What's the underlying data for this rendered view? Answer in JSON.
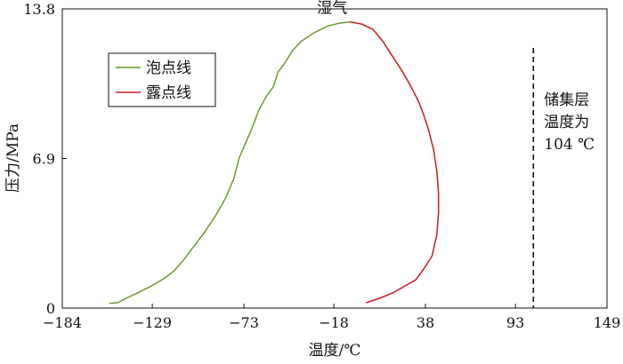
{
  "chart_data": {
    "type": "line",
    "title": "",
    "xlabel": "温度/℃",
    "ylabel": "压力/MPa",
    "xlim": [
      -184,
      149
    ],
    "ylim": [
      0,
      13.8
    ],
    "xticks": [
      -184,
      -129,
      -73,
      -18,
      38,
      93,
      149
    ],
    "yticks": [
      0,
      6.9,
      13.8
    ],
    "grid": false,
    "legend_position": "top-left",
    "series": [
      {
        "name": "泡点线",
        "color": "#6a9a2e",
        "points": [
          [
            -155,
            0.22
          ],
          [
            -150,
            0.25
          ],
          [
            -145,
            0.45
          ],
          [
            -138,
            0.7
          ],
          [
            -130,
            1.0
          ],
          [
            -122,
            1.35
          ],
          [
            -116,
            1.7
          ],
          [
            -110,
            2.2
          ],
          [
            -104,
            2.8
          ],
          [
            -97,
            3.5
          ],
          [
            -90,
            4.3
          ],
          [
            -84,
            5.1
          ],
          [
            -79,
            6.0
          ],
          [
            -76,
            6.9
          ],
          [
            -72,
            7.6
          ],
          [
            -68,
            8.3
          ],
          [
            -64,
            9.1
          ],
          [
            -59,
            9.8
          ],
          [
            -55,
            10.2
          ],
          [
            -52,
            10.9
          ],
          [
            -48,
            11.3
          ],
          [
            -43,
            11.9
          ],
          [
            -38,
            12.3
          ],
          [
            -30,
            12.7
          ],
          [
            -22,
            13.0
          ],
          [
            -14,
            13.15
          ],
          [
            -8,
            13.2
          ]
        ]
      },
      {
        "name": "露点线",
        "color": "#cc1a1a",
        "points": [
          [
            -8,
            13.2
          ],
          [
            -1,
            13.1
          ],
          [
            6,
            12.85
          ],
          [
            12,
            12.3
          ],
          [
            18,
            11.6
          ],
          [
            24,
            10.9
          ],
          [
            30,
            10.1
          ],
          [
            34,
            9.5
          ],
          [
            37,
            8.9
          ],
          [
            40,
            8.2
          ],
          [
            43,
            7.3
          ],
          [
            45,
            6.3
          ],
          [
            46,
            5.3
          ],
          [
            46,
            4.4
          ],
          [
            45,
            3.4
          ],
          [
            42,
            2.4
          ],
          [
            37,
            1.8
          ],
          [
            32,
            1.3
          ],
          [
            25,
            1.0
          ],
          [
            18,
            0.7
          ],
          [
            10,
            0.45
          ],
          [
            2,
            0.25
          ]
        ]
      }
    ],
    "annotations": [
      {
        "text": "湿气",
        "x": -19,
        "y": 13.45
      },
      {
        "lines": [
          "储集层",
          "温度为",
          "104 ℃"
        ],
        "x": 104
      }
    ],
    "reference_line": {
      "x": 104,
      "style": "dashed",
      "color": "#111111"
    }
  }
}
